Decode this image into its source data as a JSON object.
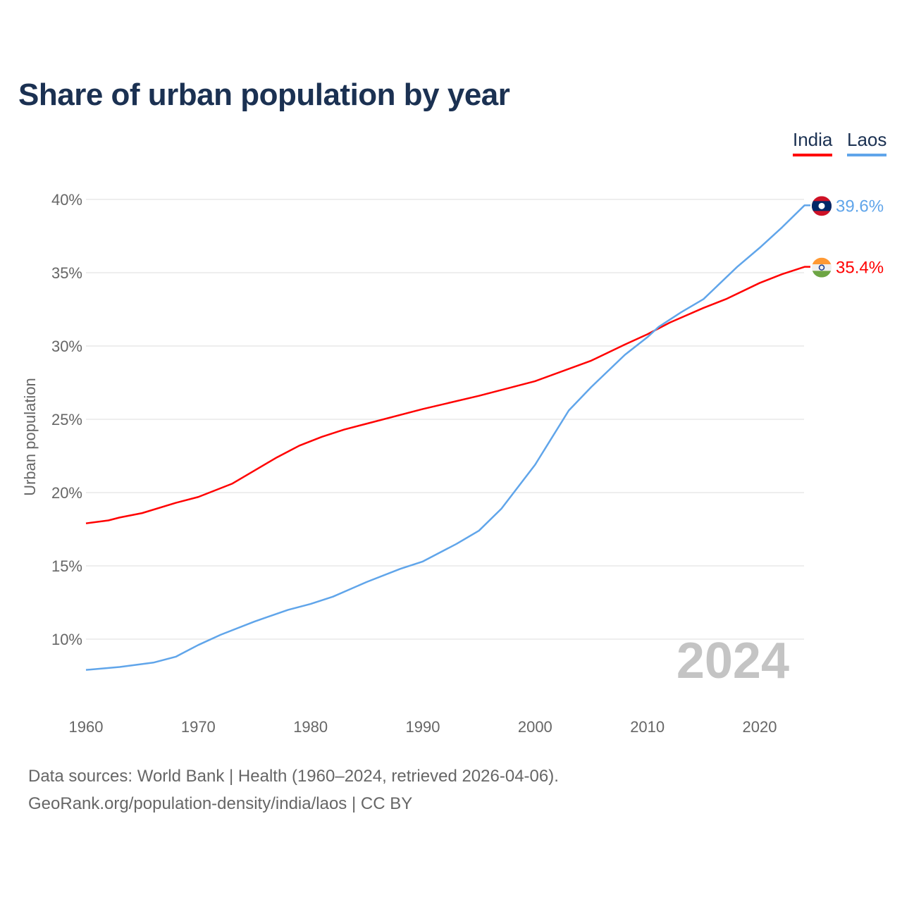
{
  "chart_data": {
    "type": "line",
    "title": "Share of urban population by year",
    "xlabel": "",
    "ylabel": "Urban population",
    "xlim": [
      1960,
      2024
    ],
    "ylim": [
      6,
      42
    ],
    "x_ticks": [
      1960,
      1970,
      1980,
      1990,
      2000,
      2010,
      2020
    ],
    "x_tick_labels": [
      "1960",
      "1970",
      "1980",
      "1990",
      "2000",
      "2010",
      "2020"
    ],
    "y_ticks": [
      10,
      15,
      20,
      25,
      30,
      35,
      40
    ],
    "y_tick_labels": [
      "10%",
      "15%",
      "20%",
      "25%",
      "30%",
      "35%",
      "40%"
    ],
    "grid": true,
    "legend_position": "top-right",
    "year_watermark": "2024",
    "series": [
      {
        "name": "India",
        "color": "#ff0000",
        "end_label": "35.4%",
        "flag": "india-flag",
        "x": [
          1960,
          1962,
          1963,
          1965,
          1968,
          1970,
          1973,
          1975,
          1977,
          1979,
          1981,
          1983,
          1985,
          1990,
          1995,
          2000,
          2005,
          2008,
          2010,
          2012,
          2015,
          2017,
          2020,
          2022,
          2024
        ],
        "y": [
          17.9,
          18.1,
          18.3,
          18.6,
          19.3,
          19.7,
          20.6,
          21.5,
          22.4,
          23.2,
          23.8,
          24.3,
          24.7,
          25.7,
          26.6,
          27.6,
          29.0,
          30.1,
          30.8,
          31.6,
          32.6,
          33.2,
          34.3,
          34.9,
          35.4
        ]
      },
      {
        "name": "Laos",
        "color": "#60a5ea",
        "end_label": "39.6%",
        "flag": "laos-flag",
        "x": [
          1960,
          1963,
          1966,
          1968,
          1970,
          1972,
          1975,
          1978,
          1980,
          1982,
          1985,
          1988,
          1990,
          1993,
          1995,
          1997,
          2000,
          2003,
          2005,
          2008,
          2010,
          2011,
          2013,
          2015,
          2018,
          2020,
          2022,
          2024
        ],
        "y": [
          7.9,
          8.1,
          8.4,
          8.8,
          9.6,
          10.3,
          11.2,
          12.0,
          12.4,
          12.9,
          13.9,
          14.8,
          15.3,
          16.5,
          17.4,
          18.9,
          21.9,
          25.6,
          27.2,
          29.4,
          30.6,
          31.3,
          32.3,
          33.2,
          35.4,
          36.7,
          38.1,
          39.6
        ]
      }
    ]
  },
  "source_line1": "Data sources: World Bank | Health (1960–2024, retrieved 2026-04-06).",
  "source_line2": "GeoRank.org/population-density/india/laos | CC BY"
}
